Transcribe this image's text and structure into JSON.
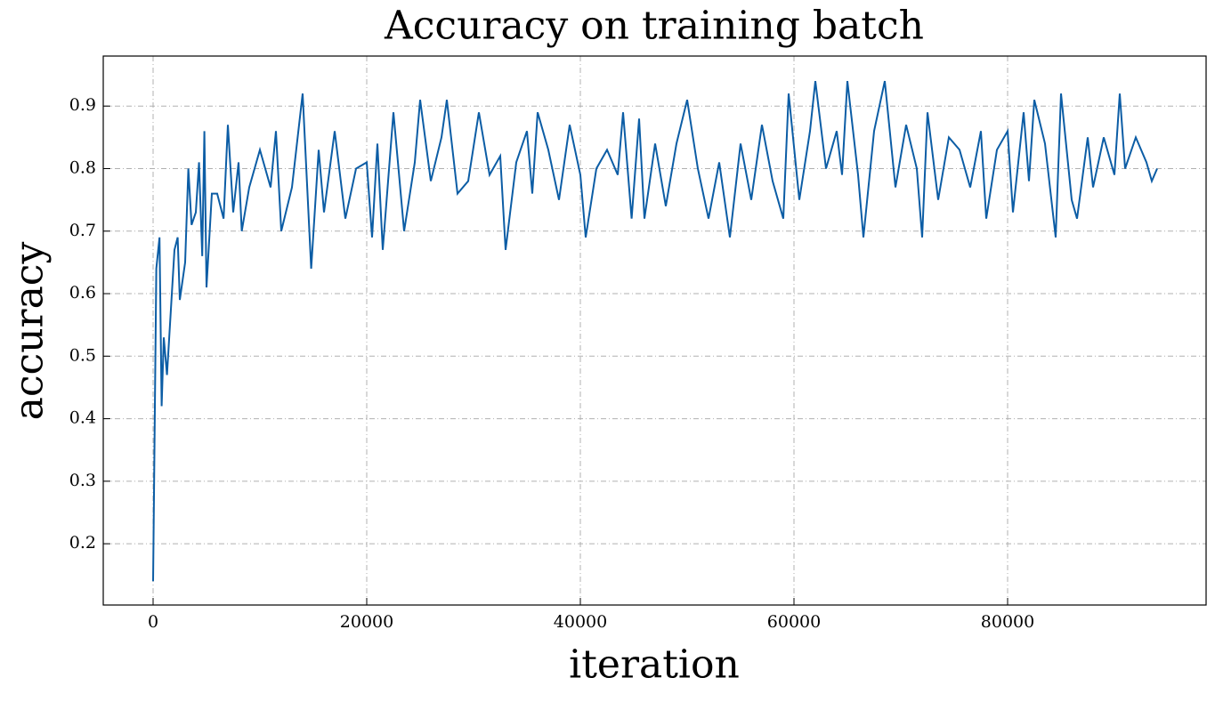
{
  "chart_data": {
    "type": "line",
    "title": "Accuracy on training batch",
    "xlabel": "iteration",
    "ylabel": "accuracy",
    "x": [
      0,
      300,
      600,
      800,
      1000,
      1300,
      2000,
      2300,
      2500,
      3000,
      3300,
      3600,
      4000,
      4300,
      4600,
      4800,
      5000,
      5500,
      6000,
      6600,
      7000,
      7500,
      8000,
      8300,
      9000,
      10000,
      11000,
      11500,
      12000,
      13000,
      14000,
      14800,
      15500,
      16000,
      17000,
      18000,
      19000,
      20000,
      20500,
      21000,
      21500,
      22500,
      23500,
      24500,
      25000,
      26000,
      27000,
      27500,
      28500,
      29500,
      30500,
      31500,
      32500,
      33000,
      34000,
      35000,
      35500,
      36000,
      37000,
      38000,
      39000,
      40000,
      40500,
      41500,
      42500,
      43500,
      44000,
      44800,
      45500,
      46000,
      47000,
      48000,
      49000,
      50000,
      51000,
      52000,
      53000,
      54000,
      55000,
      56000,
      57000,
      58000,
      59000,
      59500,
      60500,
      61500,
      62000,
      63000,
      64000,
      64500,
      65000,
      66000,
      66500,
      67500,
      68500,
      69500,
      70500,
      71500,
      72000,
      72500,
      73500,
      74500,
      75500,
      76500,
      77500,
      78000,
      79000,
      80000,
      80500,
      81500,
      82000,
      82500,
      83500,
      84500,
      85000,
      86000,
      86500,
      87500,
      88000,
      89000,
      90000,
      90500,
      91000,
      92000,
      93000,
      93500,
      94000
    ],
    "series": [
      {
        "name": "accuracy",
        "color": "#0c5da5",
        "values": [
          0.14,
          0.64,
          0.69,
          0.42,
          0.53,
          0.47,
          0.67,
          0.69,
          0.59,
          0.65,
          0.8,
          0.71,
          0.73,
          0.81,
          0.66,
          0.86,
          0.61,
          0.76,
          0.76,
          0.72,
          0.87,
          0.73,
          0.81,
          0.7,
          0.77,
          0.83,
          0.77,
          0.86,
          0.7,
          0.77,
          0.92,
          0.64,
          0.83,
          0.73,
          0.86,
          0.72,
          0.8,
          0.81,
          0.69,
          0.84,
          0.67,
          0.89,
          0.7,
          0.81,
          0.91,
          0.78,
          0.85,
          0.91,
          0.76,
          0.78,
          0.89,
          0.79,
          0.82,
          0.67,
          0.81,
          0.86,
          0.76,
          0.89,
          0.83,
          0.75,
          0.87,
          0.79,
          0.69,
          0.8,
          0.83,
          0.79,
          0.89,
          0.72,
          0.88,
          0.72,
          0.84,
          0.74,
          0.84,
          0.91,
          0.8,
          0.72,
          0.81,
          0.69,
          0.84,
          0.75,
          0.87,
          0.78,
          0.72,
          0.92,
          0.75,
          0.86,
          0.94,
          0.8,
          0.86,
          0.79,
          0.94,
          0.79,
          0.69,
          0.86,
          0.94,
          0.77,
          0.87,
          0.8,
          0.69,
          0.89,
          0.75,
          0.85,
          0.83,
          0.77,
          0.86,
          0.72,
          0.83,
          0.86,
          0.73,
          0.89,
          0.78,
          0.91,
          0.84,
          0.69,
          0.92,
          0.75,
          0.72,
          0.85,
          0.77,
          0.85,
          0.79,
          0.92,
          0.8,
          0.85,
          0.81,
          0.78,
          0.8
        ]
      }
    ],
    "xlim": [
      -4667,
      98583
    ],
    "ylim": [
      0.102,
      0.98
    ],
    "xticks": [
      0,
      20000,
      40000,
      60000,
      80000
    ],
    "yticks": [
      0.2,
      0.3,
      0.4,
      0.5,
      0.6,
      0.7,
      0.8,
      0.9
    ],
    "grid": true
  }
}
